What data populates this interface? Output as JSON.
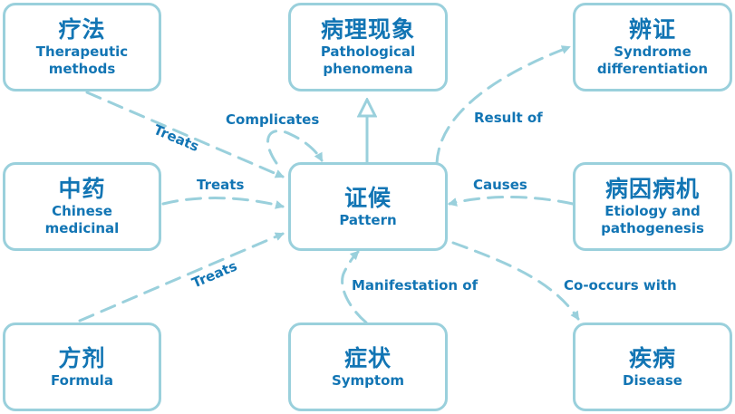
{
  "nodes": {
    "therapeutic": {
      "zh": "疗法",
      "en": "Therapeutic methods"
    },
    "pathological": {
      "zh": "病理现象",
      "en": "Pathological phenomena"
    },
    "syndrome": {
      "zh": "辨证",
      "en": "Syndrome differentiation"
    },
    "medicinal": {
      "zh": "中药",
      "en": "Chinese medicinal"
    },
    "pattern": {
      "zh": "证候",
      "en": "Pattern"
    },
    "etiology": {
      "zh": "病因病机",
      "en": "Etiology and pathogenesis"
    },
    "formula": {
      "zh": "方剂",
      "en": "Formula"
    },
    "symptom": {
      "zh": "症状",
      "en": "Symptom"
    },
    "disease": {
      "zh": "疾病",
      "en": "Disease"
    }
  },
  "edges": {
    "treats_therapeutic": "Treats",
    "treats_medicinal": "Treats",
    "treats_formula": "Treats",
    "complicates": "Complicates",
    "result_of": "Result of",
    "causes": "Causes",
    "manifestation_of": "Manifestation of",
    "co_occurs_with": "Co-occurs with"
  },
  "colors": {
    "border": "#9ad0dc",
    "text": "#1275b4",
    "background": "#ffffff"
  }
}
